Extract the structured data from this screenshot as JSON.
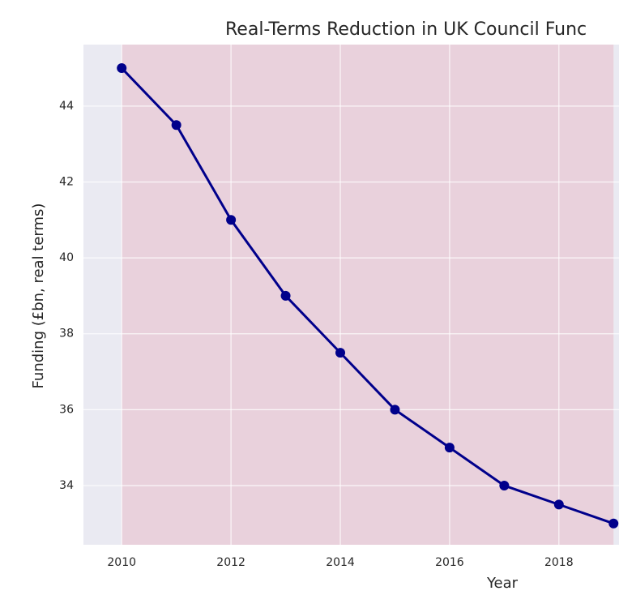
{
  "chart_data": {
    "type": "line",
    "title": "Real-Terms Reduction in UK Council Func",
    "x_label": "Year",
    "y_label": "Funding (£bn, real terms)",
    "x": [
      2010,
      2011,
      2012,
      2013,
      2014,
      2015,
      2016,
      2017,
      2018,
      2019
    ],
    "series": [
      {
        "color": "#00008b",
        "values": [
          45,
          43.5,
          41,
          39,
          37.5,
          36,
          35,
          34,
          33.5,
          33
        ]
      }
    ],
    "xlim": [
      2009.3,
      2019.1
    ],
    "xticks": [
      2010,
      2012,
      2014,
      2016,
      2018
    ],
    "ylim": [
      32.44,
      45.62
    ],
    "yticks": [
      34,
      36,
      38,
      40,
      42,
      44
    ],
    "grid": true,
    "shaded_span": {
      "x": [
        2010,
        2019
      ],
      "color": "#e9d1dc"
    }
  }
}
